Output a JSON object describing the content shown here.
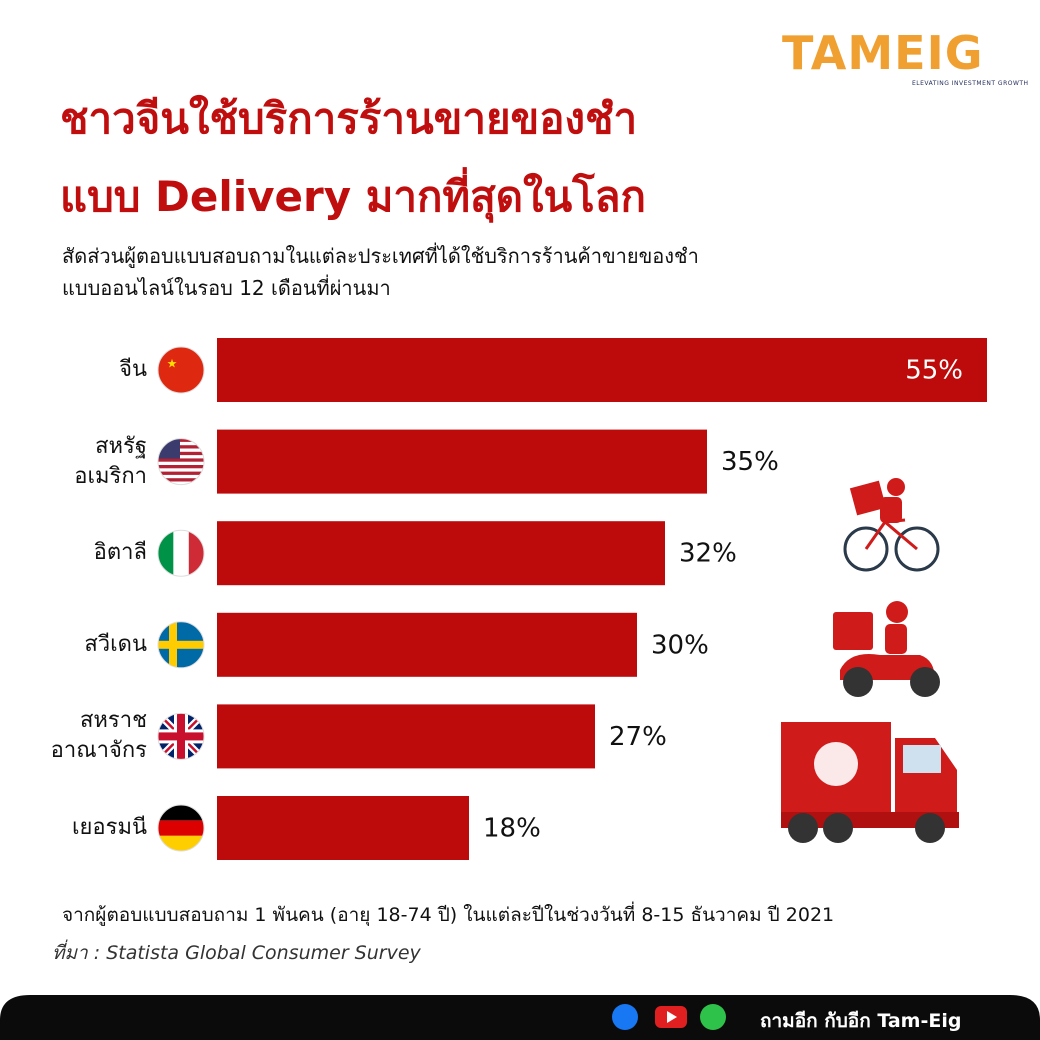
{
  "brand": {
    "logo": "TAMEIG",
    "tagline": "ELEVATING INVESTMENT GROWTH",
    "footer": "ถามอีก กับอีก Tam-Eig"
  },
  "chart_data": {
    "type": "bar",
    "orientation": "horizontal",
    "title": "ชาวจีนใช้บริการร้านขายของชำ\nแบบ Delivery มากที่สุดในโลก",
    "subtitle": "สัดส่วนผู้ตอบแบบสอบถามในแต่ละประเทศที่ได้ใช้บริการร้านค้าขายของชำ\nแบบออนไลน์ในรอบ 12 เดือนที่ผ่านมา",
    "categories": [
      "จีน",
      "สหรัฐ\nอเมริกา",
      "อิตาลี",
      "สวีเดน",
      "สหราช\nอาณาจักร",
      "เยอรมนี"
    ],
    "values": [
      55,
      35,
      32,
      30,
      27,
      18
    ],
    "value_labels": [
      "55%",
      "35%",
      "32%",
      "30%",
      "27%",
      "18%"
    ],
    "color": "#bd0a0a",
    "note": "จากผู้ตอบแบบสอบถาม 1 พันคน (อายุ 18-74 ปี) ในแต่ละปีในช่วงวันที่ 8-15 ธันวาคม ปี 2021",
    "source": "ที่มา : Statista Global Consumer Survey"
  }
}
